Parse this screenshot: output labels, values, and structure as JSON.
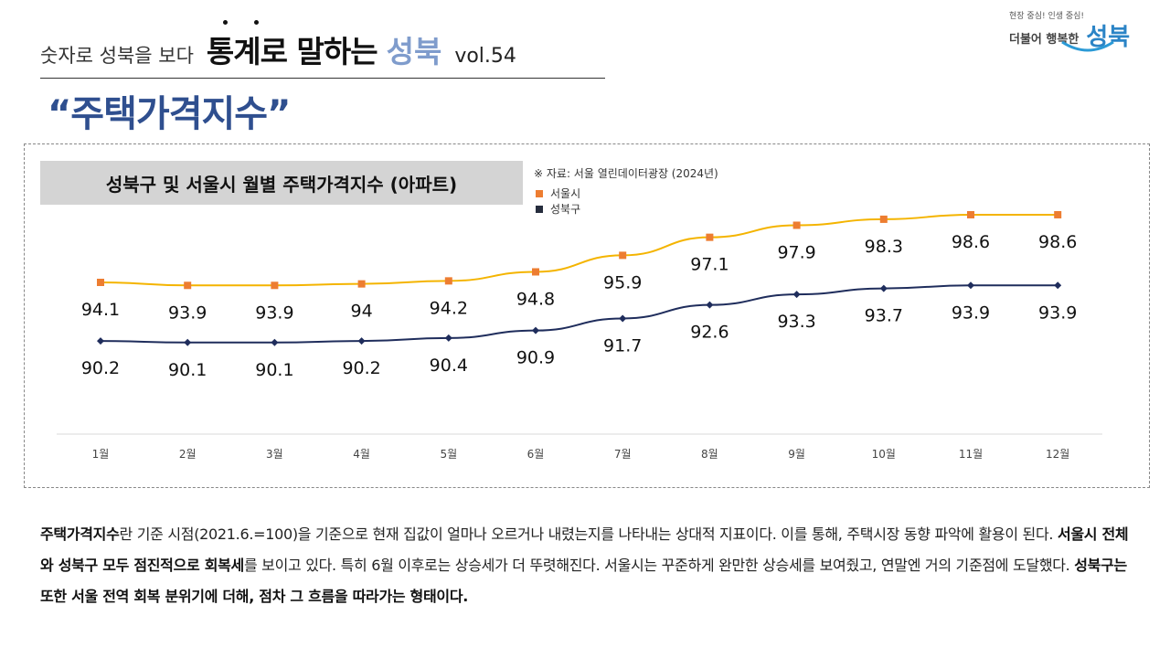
{
  "header": {
    "subtitle": "숫자로 성북을 보다",
    "main": "통계로 말하는",
    "accent": "성북",
    "vol": "vol.54"
  },
  "page_title": "“주택가격지수”",
  "logo": {
    "slogan": "현장 중심! 인생 중심!",
    "tagline": "더불어 행복한",
    "name": "성북"
  },
  "chart_data": {
    "type": "line",
    "title": "성북구 및 서울시 월별  주택가격지수 (아파트)",
    "source": "※ 자료: 서울 열린데이터광장  (2024년)",
    "categories": [
      "1월",
      "2월",
      "3월",
      "4월",
      "5월",
      "6월",
      "7월",
      "8월",
      "9월",
      "10월",
      "11월",
      "12월"
    ],
    "series": [
      {
        "name": "서울시",
        "color": "#f4b400",
        "marker_color": "#ed7d31",
        "marker": "square",
        "values": [
          94.1,
          93.9,
          93.9,
          94,
          94.2,
          94.8,
          95.9,
          97.1,
          97.9,
          98.3,
          98.6,
          98.6
        ]
      },
      {
        "name": "성북구",
        "color": "#1f2d5c",
        "marker_color": "#1f2d5c",
        "marker": "diamond",
        "values": [
          90.2,
          90.1,
          90.1,
          90.2,
          90.4,
          90.9,
          91.7,
          92.6,
          93.3,
          93.7,
          93.9,
          93.9
        ]
      }
    ],
    "legend": "top",
    "grid": false
  },
  "paragraph": [
    {
      "t": "주택가격지수",
      "b": true
    },
    {
      "t": "란 기준 시점(2021.6.=100)을 기준으로 현재 집값이 얼마나 오르거나 내렸는지를 나타내는 상대적 지표이다. 이를 통해, 주택시장 동향 파악에 활용이 된다. ",
      "b": false
    },
    {
      "t": "서울시 전체와 성북구 모두 점진적으로 회복세",
      "b": true
    },
    {
      "t": "를 보이고 있다. 특히 6월 이후로는 상승세가 더 뚜렷해진다. 서울시는 꾸준하게 완만한 상승세를 보여줬고, 연말엔 거의 기준점에 도달했다. ",
      "b": false
    },
    {
      "t": "성북구는 또한 서울 전역 회복 분위기에 더해, 점차 그 흐름을 따라가는 형태이다.",
      "b": true
    }
  ]
}
